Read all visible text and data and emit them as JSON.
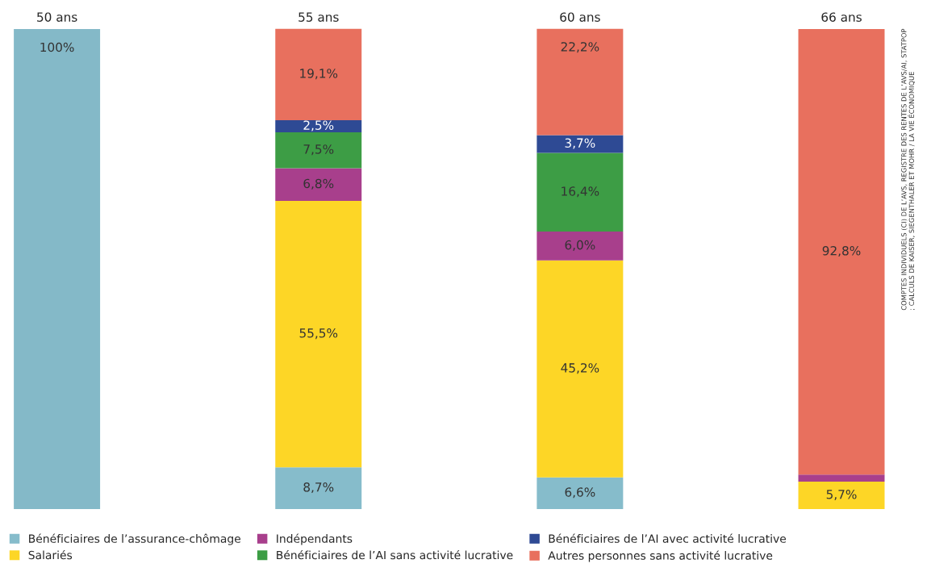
{
  "chart_data": {
    "type": "bar",
    "stacked": true,
    "categories": [
      "50 ans",
      "55 ans",
      "60 ans",
      "66 ans"
    ],
    "series": [
      {
        "color": "#84b9c8",
        "values": [
          100,
          null,
          null,
          null
        ],
        "value_labels": [
          "100%",
          null,
          null,
          null
        ]
      },
      {
        "name": "Bénéficiaires de l’assurance-chômage",
        "color": "#86bccb",
        "values": [
          null,
          8.7,
          6.6,
          null
        ],
        "value_labels": [
          null,
          "8,7%",
          "6,6%",
          null
        ]
      },
      {
        "name": "Salariés",
        "color": "#fdd626",
        "values": [
          null,
          55.5,
          45.2,
          5.7
        ],
        "value_labels": [
          null,
          "55,5%",
          "45,2%",
          "5,7%"
        ]
      },
      {
        "name": "Indépendants",
        "color": "#a83f8c",
        "values": [
          null,
          6.8,
          6.0,
          1.5
        ],
        "value_labels": [
          null,
          "6,8%",
          "6,0%",
          null
        ]
      },
      {
        "name": "Bénéficiaires de l’AI sans activité lucrative",
        "color": "#3d9d45",
        "values": [
          null,
          7.5,
          16.4,
          null
        ],
        "value_labels": [
          null,
          "7,5%",
          "16,4%",
          null
        ]
      },
      {
        "name": "Bénéficiaires de l’AI avec activité lucrative",
        "color": "#2e4a94",
        "values": [
          null,
          2.5,
          3.7,
          null
        ],
        "value_labels": [
          null,
          "2,5%",
          "3,7%",
          null
        ]
      },
      {
        "name": "Autres personnes sans activité lucrative",
        "color": "#e8705e",
        "values": [
          null,
          19.1,
          22.2,
          92.8
        ],
        "value_labels": [
          null,
          "19,1%",
          "22,2%",
          "92,8%"
        ]
      }
    ],
    "legend": "bottom",
    "tick_labels": "x",
    "annotations": [
      "COMPTES INDIVIDUELS (CI) DE L’AVS, REGISTRE DES RENTES DE L’AVS/AI, STATPOP ; CALCULS DE KAISER, SIEGENTHALER ET MOHR / LA VIE ÉCONOMIQUE"
    ]
  }
}
